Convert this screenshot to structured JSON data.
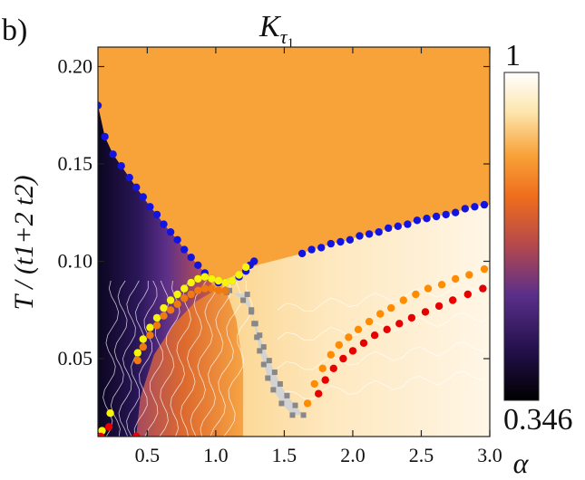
{
  "chart_data": {
    "type": "heatmap",
    "panel_label": "b)",
    "title": {
      "base": "K",
      "sub": "τ",
      "subsub": "1"
    },
    "ylabel": "T / (t1+2 t2)",
    "xlabel": "α",
    "xlim": [
      0.14,
      3.0
    ],
    "ylim": [
      0.01,
      0.21
    ],
    "xticks": [
      "0.5",
      "1.0",
      "1.5",
      "2.0",
      "2.5",
      "3.0"
    ],
    "xtick_values": [
      0.5,
      1.0,
      1.5,
      2.0,
      2.5,
      3.0
    ],
    "yticks": [
      "0.05",
      "0.10",
      "0.15",
      "0.20"
    ],
    "ytick_values": [
      0.05,
      0.1,
      0.15,
      0.2
    ],
    "colorbar": {
      "min": 0.346,
      "max": 1,
      "min_label": "0.346",
      "max_label": "1"
    },
    "colors": {
      "blue": "#1414e0",
      "yellow": "#f5f50a",
      "orange": "#ff8c00",
      "dark_orange": "#ee7a10",
      "red": "#e60000",
      "gray_region": "#d3d3d3",
      "gray_points": "#888888",
      "orange_plateau": "#f8a33a",
      "cream": "#fff3d6"
    },
    "series": [
      {
        "color": "blue",
        "x": [
          0.14,
          0.19,
          0.25,
          0.31,
          0.37,
          0.42,
          0.47,
          0.52,
          0.57,
          0.62,
          0.67,
          0.72,
          0.77,
          0.82,
          0.87,
          0.92,
          0.97,
          1.02,
          1.07,
          1.12,
          1.17,
          1.22,
          1.25,
          1.28,
          1.63,
          1.7,
          1.77,
          1.84,
          1.91,
          1.98,
          2.05,
          2.12,
          2.19,
          2.26,
          2.33,
          2.4,
          2.47,
          2.54,
          2.61,
          2.68,
          2.75,
          2.82,
          2.89,
          2.96
        ],
        "y": [
          0.18,
          0.164,
          0.155,
          0.149,
          0.143,
          0.138,
          0.133,
          0.128,
          0.124,
          0.119,
          0.115,
          0.111,
          0.106,
          0.102,
          0.098,
          0.094,
          0.091,
          0.089,
          0.089,
          0.09,
          0.092,
          0.095,
          0.098,
          0.1,
          0.104,
          0.106,
          0.107,
          0.109,
          0.11,
          0.111,
          0.113,
          0.114,
          0.115,
          0.117,
          0.118,
          0.119,
          0.121,
          0.122,
          0.123,
          0.124,
          0.125,
          0.127,
          0.128,
          0.129
        ]
      },
      {
        "color": "yellow",
        "x": [
          0.17,
          0.23,
          0.43,
          0.47,
          0.52,
          0.57,
          0.62,
          0.67,
          0.72,
          0.77,
          0.82,
          0.87,
          0.92,
          0.97,
          1.02,
          1.07,
          1.12,
          1.17,
          1.22
        ],
        "y": [
          0.013,
          0.022,
          0.053,
          0.06,
          0.066,
          0.071,
          0.076,
          0.08,
          0.083,
          0.086,
          0.089,
          0.091,
          0.092,
          0.091,
          0.09,
          0.089,
          0.09,
          0.093,
          0.097
        ]
      },
      {
        "color": "dark_orange",
        "x": [
          0.43,
          0.47,
          0.52,
          0.57,
          0.62,
          0.67,
          0.72,
          0.77,
          0.82,
          0.87,
          0.92,
          0.97,
          1.02,
          1.07
        ],
        "y": [
          0.049,
          0.056,
          0.062,
          0.067,
          0.072,
          0.075,
          0.078,
          0.081,
          0.083,
          0.085,
          0.086,
          0.086,
          0.085,
          0.085
        ]
      },
      {
        "color": "orange",
        "x": [
          1.67,
          1.72,
          1.78,
          1.84,
          1.9,
          1.97,
          2.04,
          2.12,
          2.2,
          2.28,
          2.37,
          2.46,
          2.55,
          2.65,
          2.75,
          2.85,
          2.96
        ],
        "y": [
          0.027,
          0.037,
          0.045,
          0.052,
          0.057,
          0.061,
          0.065,
          0.069,
          0.073,
          0.076,
          0.08,
          0.083,
          0.086,
          0.088,
          0.091,
          0.093,
          0.096
        ]
      },
      {
        "color": "red",
        "x": [
          0.16,
          0.22,
          0.42,
          1.75,
          1.8,
          1.86,
          1.93,
          2.0,
          2.08,
          2.16,
          2.25,
          2.34,
          2.43,
          2.53,
          2.63,
          2.73,
          2.84,
          2.95
        ],
        "y": [
          0.01,
          0.015,
          0.01,
          0.032,
          0.039,
          0.045,
          0.05,
          0.054,
          0.058,
          0.062,
          0.065,
          0.068,
          0.071,
          0.074,
          0.077,
          0.08,
          0.083,
          0.086
        ]
      }
    ],
    "gray_region": {
      "x": [
        1.08,
        1.23,
        1.26,
        1.28,
        1.3,
        1.32,
        1.35,
        1.38,
        1.42,
        1.48,
        1.56,
        1.64,
        1.58,
        1.52,
        1.47,
        1.43,
        1.39,
        1.35,
        1.32,
        1.29,
        1.26,
        1.2,
        1.1
      ],
      "y": [
        0.084,
        0.083,
        0.075,
        0.068,
        0.061,
        0.054,
        0.047,
        0.04,
        0.034,
        0.027,
        0.021,
        0.021,
        0.026,
        0.031,
        0.037,
        0.043,
        0.049,
        0.056,
        0.062,
        0.068,
        0.074,
        0.08,
        0.085
      ]
    }
  }
}
